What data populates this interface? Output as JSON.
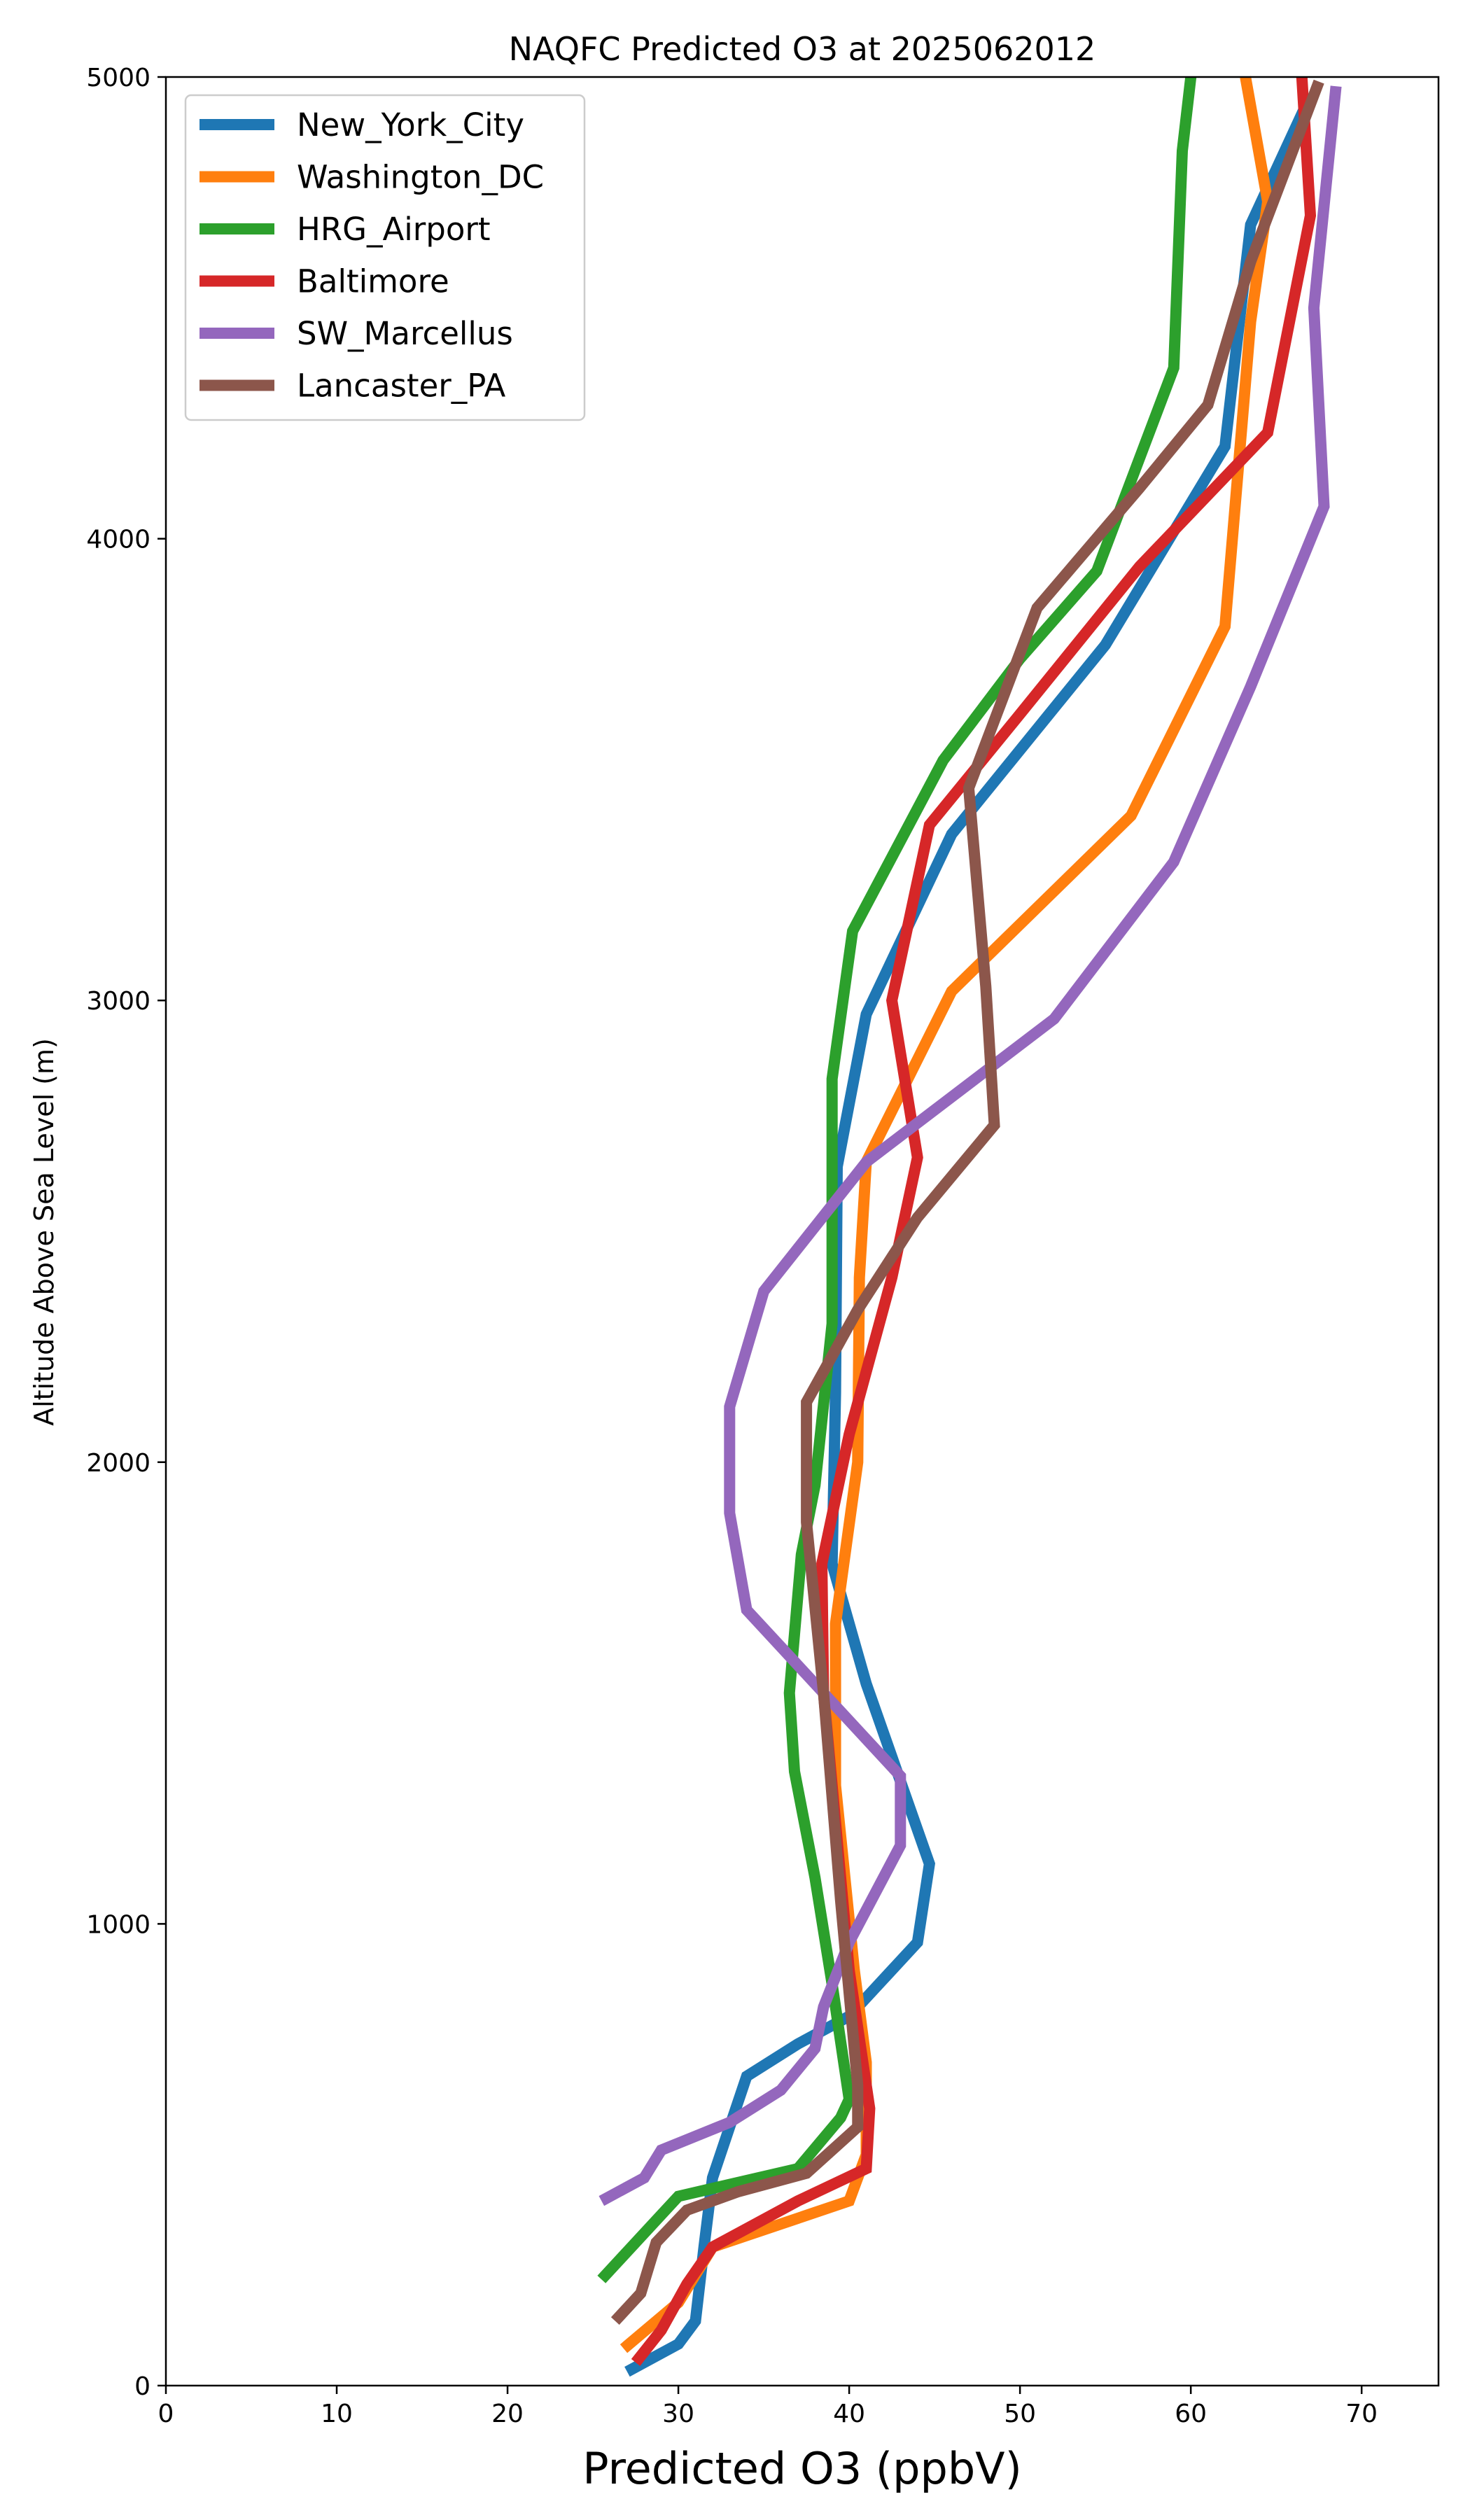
{
  "chart_data": {
    "type": "line",
    "title": "NAQFC Predicted O3 at 2025062012",
    "xlabel": "Predicted O3 (ppbV)",
    "ylabel": "Altitude Above Sea Level (m)",
    "xlim": [
      0,
      74.5
    ],
    "ylim": [
      0,
      5000
    ],
    "xticks": [
      0,
      10,
      20,
      30,
      40,
      50,
      60,
      70
    ],
    "yticks": [
      0,
      1000,
      2000,
      3000,
      4000,
      5000
    ],
    "grid": false,
    "legend_position": "upper-left",
    "series": [
      {
        "name": "New_York_City",
        "color": "#1f77b4",
        "points": [
          [
            27.0,
            30
          ],
          [
            30.0,
            90
          ],
          [
            31.0,
            140
          ],
          [
            31.5,
            300
          ],
          [
            32.0,
            450
          ],
          [
            33.0,
            560
          ],
          [
            34.0,
            670
          ],
          [
            37.0,
            740
          ],
          [
            40.0,
            800
          ],
          [
            44.0,
            960
          ],
          [
            44.7,
            1130
          ],
          [
            41.0,
            1520
          ],
          [
            39.0,
            1780
          ],
          [
            39.2,
            2150
          ],
          [
            39.3,
            2640
          ],
          [
            41.0,
            2970
          ],
          [
            46.0,
            3360
          ],
          [
            55.0,
            3770
          ],
          [
            62.0,
            4200
          ],
          [
            63.5,
            4680
          ],
          [
            67.0,
            4960
          ]
        ]
      },
      {
        "name": "Washington_DC",
        "color": "#ff7f0e",
        "points": [
          [
            26.8,
            80
          ],
          [
            30.0,
            180
          ],
          [
            32.0,
            300
          ],
          [
            40.0,
            400
          ],
          [
            41.0,
            500
          ],
          [
            41.0,
            700
          ],
          [
            40.3,
            900
          ],
          [
            39.2,
            1300
          ],
          [
            39.2,
            1650
          ],
          [
            40.5,
            2000
          ],
          [
            40.6,
            2400
          ],
          [
            41.0,
            2650
          ],
          [
            46.0,
            3020
          ],
          [
            56.5,
            3400
          ],
          [
            62.0,
            3810
          ],
          [
            63.5,
            4470
          ],
          [
            64.5,
            4730
          ],
          [
            63.2,
            5000
          ]
        ]
      },
      {
        "name": "HRG_Airport",
        "color": "#2ca02c",
        "points": [
          [
            25.5,
            230
          ],
          [
            28.0,
            330
          ],
          [
            30.0,
            410
          ],
          [
            37.0,
            470
          ],
          [
            39.5,
            580
          ],
          [
            40.0,
            620
          ],
          [
            39.0,
            870
          ],
          [
            38.0,
            1100
          ],
          [
            36.8,
            1330
          ],
          [
            36.5,
            1500
          ],
          [
            37.2,
            1800
          ],
          [
            38.0,
            1950
          ],
          [
            39.0,
            2300
          ],
          [
            39.0,
            2830
          ],
          [
            40.2,
            3150
          ],
          [
            45.5,
            3520
          ],
          [
            50.0,
            3740
          ],
          [
            54.5,
            3930
          ],
          [
            59.0,
            4370
          ],
          [
            59.5,
            4840
          ],
          [
            60.0,
            5000
          ]
        ]
      },
      {
        "name": "Baltimore",
        "color": "#d62728",
        "points": [
          [
            27.5,
            50
          ],
          [
            29.0,
            120
          ],
          [
            30.5,
            220
          ],
          [
            32.0,
            300
          ],
          [
            37.0,
            400
          ],
          [
            41.0,
            470
          ],
          [
            41.2,
            600
          ],
          [
            40.0,
            900
          ],
          [
            39.0,
            1300
          ],
          [
            38.5,
            1500
          ],
          [
            38.4,
            1780
          ],
          [
            40.0,
            2060
          ],
          [
            42.5,
            2400
          ],
          [
            44.0,
            2660
          ],
          [
            42.5,
            3000
          ],
          [
            44.7,
            3380
          ],
          [
            50.0,
            3620
          ],
          [
            57.0,
            3940
          ],
          [
            64.5,
            4230
          ],
          [
            67.0,
            4700
          ],
          [
            66.5,
            5000
          ]
        ]
      },
      {
        "name": "SW_Marcellus",
        "color": "#9467bd",
        "points": [
          [
            25.5,
            400
          ],
          [
            28.0,
            450
          ],
          [
            29.0,
            510
          ],
          [
            33.0,
            570
          ],
          [
            36.0,
            640
          ],
          [
            38.0,
            730
          ],
          [
            38.5,
            820
          ],
          [
            40.0,
            960
          ],
          [
            43.0,
            1170
          ],
          [
            43.0,
            1320
          ],
          [
            34.0,
            1680
          ],
          [
            33.0,
            1890
          ],
          [
            33.0,
            2120
          ],
          [
            35.0,
            2370
          ],
          [
            41.0,
            2650
          ],
          [
            52.0,
            2960
          ],
          [
            59.0,
            3300
          ],
          [
            63.5,
            3680
          ],
          [
            67.8,
            4070
          ],
          [
            67.2,
            4500
          ],
          [
            68.5,
            4980
          ]
        ]
      },
      {
        "name": "Lancaster_PA",
        "color": "#8c564b",
        "points": [
          [
            26.3,
            140
          ],
          [
            27.8,
            200
          ],
          [
            28.7,
            310
          ],
          [
            30.5,
            380
          ],
          [
            33.5,
            420
          ],
          [
            37.5,
            460
          ],
          [
            40.5,
            560
          ],
          [
            40.5,
            650
          ],
          [
            39.5,
            1050
          ],
          [
            38.5,
            1500
          ],
          [
            37.5,
            1870
          ],
          [
            37.5,
            2130
          ],
          [
            40.5,
            2330
          ],
          [
            44.0,
            2530
          ],
          [
            48.5,
            2730
          ],
          [
            48.0,
            3030
          ],
          [
            47.0,
            3460
          ],
          [
            51.0,
            3850
          ],
          [
            57.0,
            4110
          ],
          [
            61.0,
            4290
          ],
          [
            63.5,
            4600
          ],
          [
            67.5,
            4990
          ]
        ]
      }
    ]
  }
}
